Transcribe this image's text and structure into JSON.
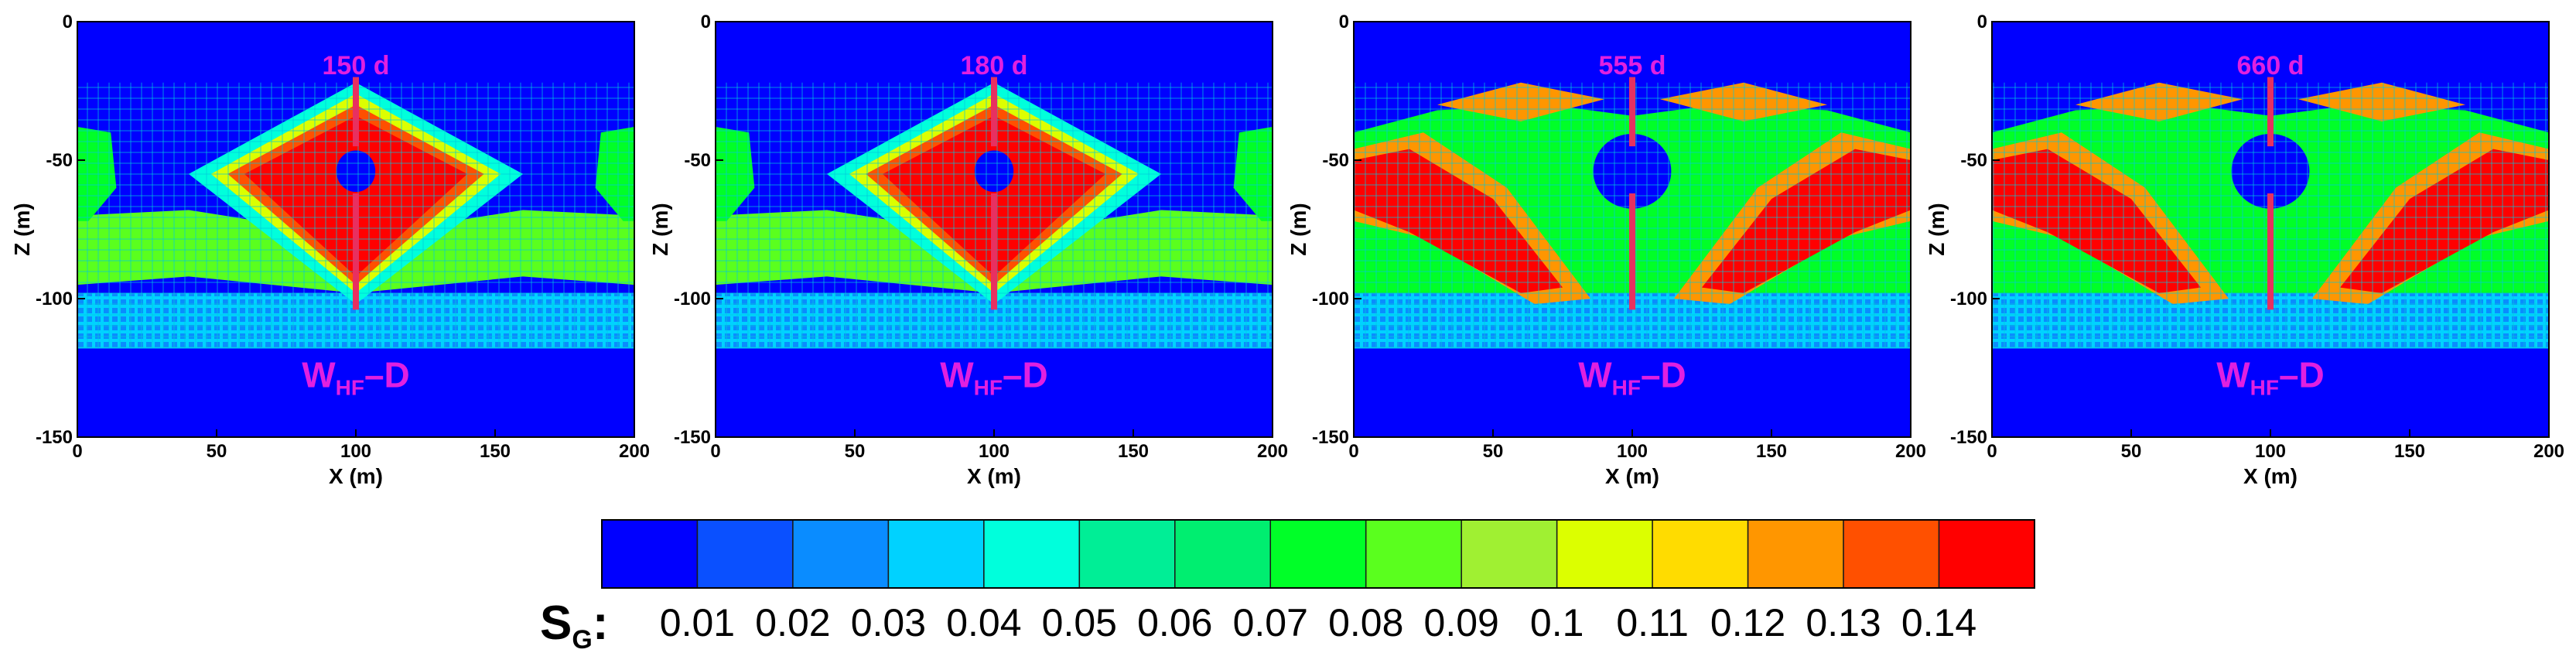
{
  "chart_data": [
    {
      "type": "heatmap",
      "title": "150 d",
      "annotation": {
        "main": "W",
        "sub": "HF",
        "rest": "–D"
      },
      "xlabel": "X (m)",
      "ylabel": "Z (m)",
      "xlim": [
        0,
        200
      ],
      "ylim": [
        -150,
        0
      ],
      "xticks": [
        0,
        50,
        100,
        150,
        200
      ],
      "yticks": [
        0,
        -50,
        -100,
        -150
      ],
      "variant": "early"
    },
    {
      "type": "heatmap",
      "title": "180 d",
      "annotation": {
        "main": "W",
        "sub": "HF",
        "rest": "–D"
      },
      "xlabel": "X (m)",
      "ylabel": "Z (m)",
      "xlim": [
        0,
        200
      ],
      "ylim": [
        -150,
        0
      ],
      "xticks": [
        0,
        50,
        100,
        150,
        200
      ],
      "yticks": [
        0,
        -50,
        -100,
        -150
      ],
      "variant": "early"
    },
    {
      "type": "heatmap",
      "title": "555 d",
      "annotation": {
        "main": "W",
        "sub": "HF",
        "rest": "–D"
      },
      "xlabel": "X (m)",
      "ylabel": "Z (m)",
      "xlim": [
        0,
        200
      ],
      "ylim": [
        -150,
        0
      ],
      "xticks": [
        0,
        50,
        100,
        150,
        200
      ],
      "yticks": [
        0,
        -50,
        -100,
        -150
      ],
      "variant": "late"
    },
    {
      "type": "heatmap",
      "title": "660 d",
      "annotation": {
        "main": "W",
        "sub": "HF",
        "rest": "–D"
      },
      "xlabel": "X (m)",
      "ylabel": "Z (m)",
      "xlim": [
        0,
        200
      ],
      "ylim": [
        -150,
        0
      ],
      "xticks": [
        0,
        50,
        100,
        150,
        200
      ],
      "yticks": [
        0,
        -50,
        -100,
        -150
      ],
      "variant": "late"
    }
  ],
  "colorbar": {
    "title_main": "S",
    "title_sub": "G",
    "title_colon": ":",
    "levels": [
      0.01,
      0.02,
      0.03,
      0.04,
      0.05,
      0.06,
      0.07,
      0.08,
      0.09,
      0.1,
      0.11,
      0.12,
      0.13,
      0.14
    ],
    "labels": [
      "0.01",
      "0.02",
      "0.03",
      "0.04",
      "0.05",
      "0.06",
      "0.07",
      "0.08",
      "0.09",
      "0.1",
      "0.11",
      "0.12",
      "0.13",
      "0.14"
    ],
    "colors": [
      "#0000ff",
      "#0a50ff",
      "#0a8cff",
      "#00d2ff",
      "#00ffdc",
      "#00ee96",
      "#00ee70",
      "#00ff28",
      "#5aff1e",
      "#a0f032",
      "#dcff00",
      "#ffdc00",
      "#ff9600",
      "#ff5000",
      "#ff0000"
    ]
  }
}
